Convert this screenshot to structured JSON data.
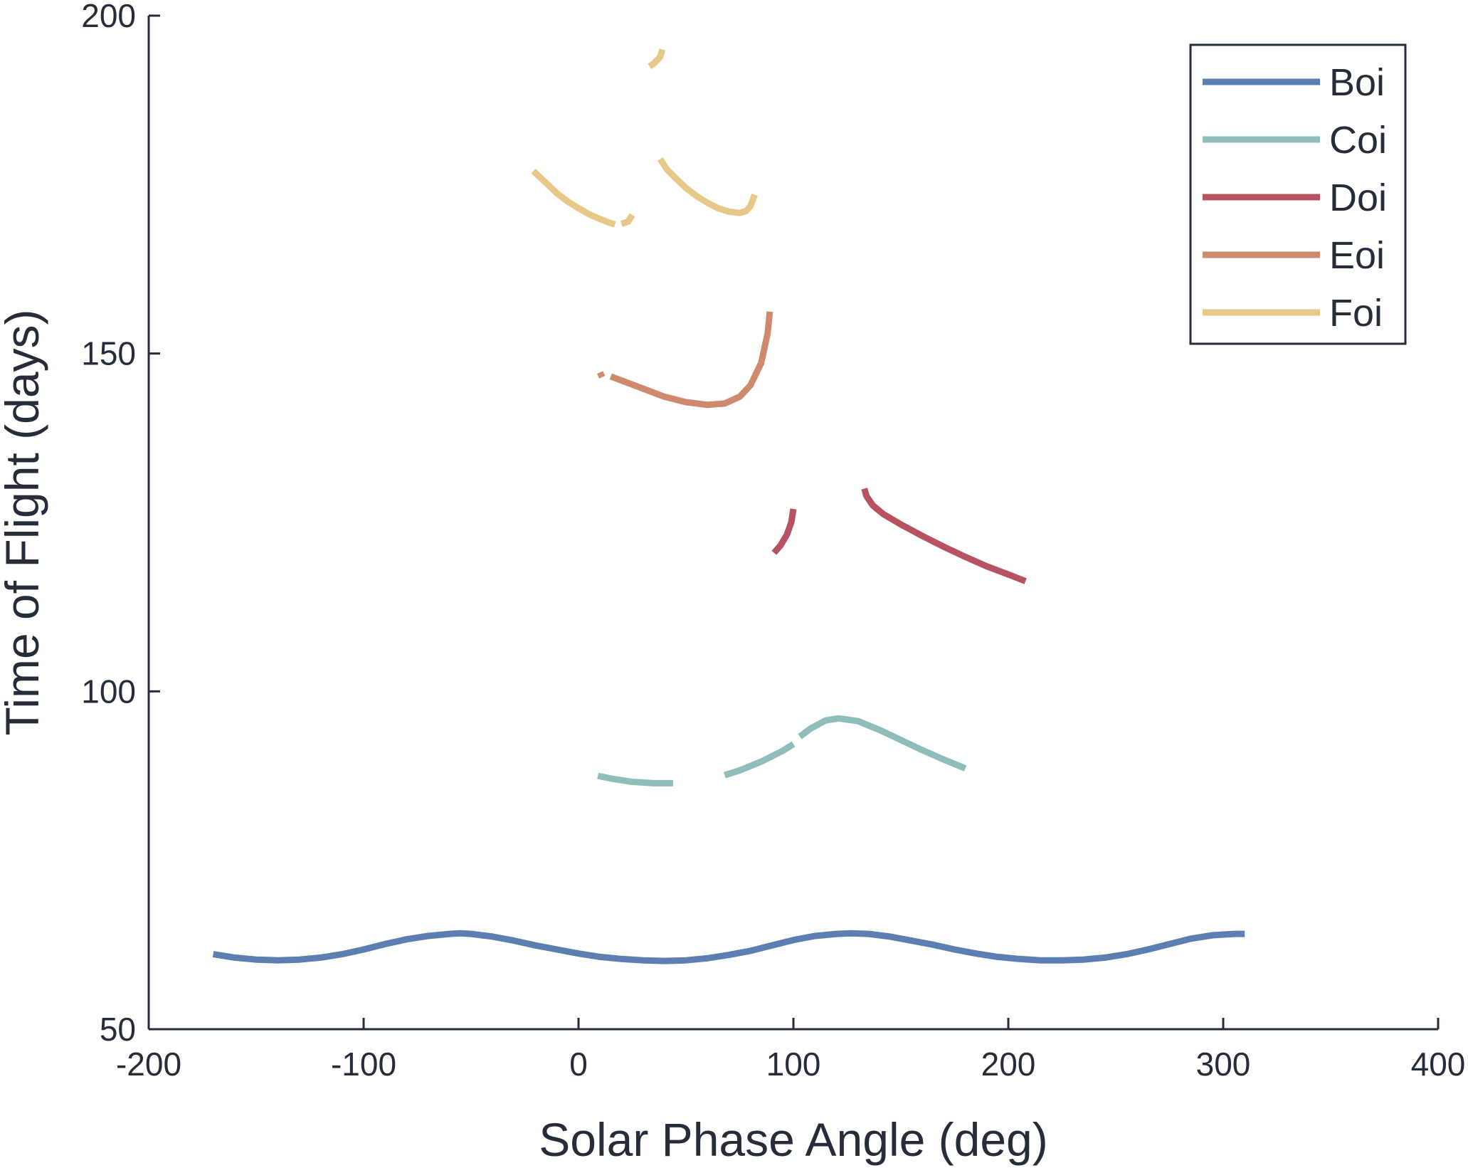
{
  "chart_data": {
    "type": "line",
    "title": "",
    "xlabel": "Solar Phase Angle (deg)",
    "ylabel": "Time of Flight (days)",
    "xlim": [
      -200,
      400
    ],
    "ylim": [
      50,
      200
    ],
    "xticks": [
      -200,
      -100,
      0,
      100,
      200,
      300,
      400
    ],
    "yticks": [
      50,
      100,
      150,
      200
    ],
    "xtick_labels": [
      "-200",
      "-100",
      "0",
      "100",
      "200",
      "300",
      "400"
    ],
    "ytick_labels": [
      "50",
      "100",
      "150",
      "200"
    ],
    "grid": false,
    "legend_position": "top-right",
    "series": [
      {
        "name": "Boi",
        "color": "#5b7fb0",
        "segments": [
          [
            [
              -170,
              61.1
            ],
            [
              -160,
              60.6
            ],
            [
              -150,
              60.3
            ],
            [
              -140,
              60.2
            ],
            [
              -130,
              60.3
            ],
            [
              -120,
              60.6
            ],
            [
              -110,
              61.1
            ],
            [
              -100,
              61.8
            ],
            [
              -90,
              62.6
            ],
            [
              -80,
              63.3
            ],
            [
              -70,
              63.8
            ],
            [
              -60,
              64.1
            ],
            [
              -55,
              64.2
            ],
            [
              -50,
              64.1
            ],
            [
              -40,
              63.7
            ],
            [
              -30,
              63.1
            ],
            [
              -20,
              62.4
            ],
            [
              -10,
              61.8
            ],
            [
              0,
              61.2
            ],
            [
              10,
              60.7
            ],
            [
              20,
              60.4
            ],
            [
              30,
              60.2
            ],
            [
              40,
              60.1
            ],
            [
              50,
              60.2
            ],
            [
              60,
              60.5
            ],
            [
              70,
              61.0
            ],
            [
              80,
              61.6
            ],
            [
              90,
              62.4
            ],
            [
              100,
              63.2
            ],
            [
              110,
              63.8
            ],
            [
              120,
              64.1
            ],
            [
              127,
              64.2
            ],
            [
              135,
              64.1
            ],
            [
              145,
              63.7
            ],
            [
              155,
              63.1
            ],
            [
              165,
              62.5
            ],
            [
              175,
              61.8
            ],
            [
              185,
              61.2
            ],
            [
              195,
              60.7
            ],
            [
              205,
              60.4
            ],
            [
              215,
              60.2
            ],
            [
              225,
              60.2
            ],
            [
              235,
              60.3
            ],
            [
              245,
              60.6
            ],
            [
              255,
              61.1
            ],
            [
              265,
              61.8
            ],
            [
              275,
              62.6
            ],
            [
              285,
              63.4
            ],
            [
              295,
              63.9
            ],
            [
              305,
              64.1
            ],
            [
              310,
              64.1
            ]
          ]
        ]
      },
      {
        "name": "Coi",
        "color": "#8fbdba",
        "segments": [
          [
            [
              9,
              87.5
            ],
            [
              15,
              87.1
            ],
            [
              25,
              86.6
            ],
            [
              35,
              86.4
            ],
            [
              44,
              86.4
            ]
          ],
          [
            [
              68,
              87.6
            ],
            [
              75,
              88.3
            ],
            [
              85,
              89.6
            ],
            [
              95,
              91.2
            ],
            [
              100,
              92.2
            ]
          ],
          [
            [
              103,
              93.3
            ],
            [
              108,
              94.5
            ],
            [
              115,
              95.7
            ],
            [
              121,
              96.0
            ],
            [
              130,
              95.6
            ],
            [
              140,
              94.3
            ],
            [
              150,
              92.8
            ],
            [
              160,
              91.3
            ],
            [
              170,
              89.9
            ],
            [
              180,
              88.6
            ]
          ]
        ]
      },
      {
        "name": "Doi",
        "color": "#b75361",
        "segments": [
          [
            [
              91,
              120.5
            ],
            [
              94,
              121.6
            ],
            [
              97,
              123.2
            ],
            [
              99,
              125.0
            ],
            [
              100,
              127.0
            ]
          ],
          [
            [
              133,
              130.0
            ],
            [
              134,
              128.9
            ],
            [
              137,
              127.5
            ],
            [
              142,
              126.2
            ],
            [
              150,
              124.7
            ],
            [
              160,
              123.0
            ],
            [
              170,
              121.4
            ],
            [
              180,
              119.9
            ],
            [
              190,
              118.5
            ],
            [
              200,
              117.3
            ],
            [
              208,
              116.3
            ]
          ]
        ]
      },
      {
        "name": "Eoi",
        "color": "#cf8a6e",
        "segments": [
          [
            [
              10,
              147.2
            ],
            [
              11,
              146.5
            ]
          ],
          [
            [
              15,
              146.6
            ],
            [
              20,
              146.0
            ],
            [
              30,
              144.8
            ],
            [
              40,
              143.6
            ],
            [
              50,
              142.8
            ],
            [
              60,
              142.4
            ],
            [
              68,
              142.6
            ],
            [
              75,
              143.6
            ],
            [
              80,
              145.3
            ],
            [
              85,
              148.6
            ],
            [
              88,
              153.0
            ],
            [
              89,
              156.2
            ]
          ]
        ]
      },
      {
        "name": "Foi",
        "color": "#e8c888",
        "segments": [
          [
            [
              -21,
              177.0
            ],
            [
              -15,
              175.2
            ],
            [
              -10,
              173.7
            ],
            [
              -5,
              172.5
            ],
            [
              0,
              171.5
            ],
            [
              5,
              170.6
            ],
            [
              10,
              169.9
            ],
            [
              14,
              169.4
            ],
            [
              17,
              169.1
            ]
          ],
          [
            [
              20,
              169.2
            ],
            [
              23,
              169.5
            ],
            [
              25,
              170.5
            ]
          ],
          [
            [
              38,
              178.8
            ],
            [
              41,
              177.3
            ],
            [
              45,
              176.0
            ],
            [
              50,
              174.5
            ],
            [
              55,
              173.3
            ],
            [
              60,
              172.3
            ],
            [
              65,
              171.5
            ],
            [
              70,
              171.0
            ],
            [
              75,
              170.8
            ],
            [
              78,
              171.1
            ],
            [
              80,
              171.8
            ],
            [
              82,
              173.5
            ]
          ],
          [
            [
              33,
              192.5
            ],
            [
              35,
              192.9
            ],
            [
              38,
              193.9
            ],
            [
              39,
              195.0
            ]
          ]
        ]
      }
    ]
  }
}
